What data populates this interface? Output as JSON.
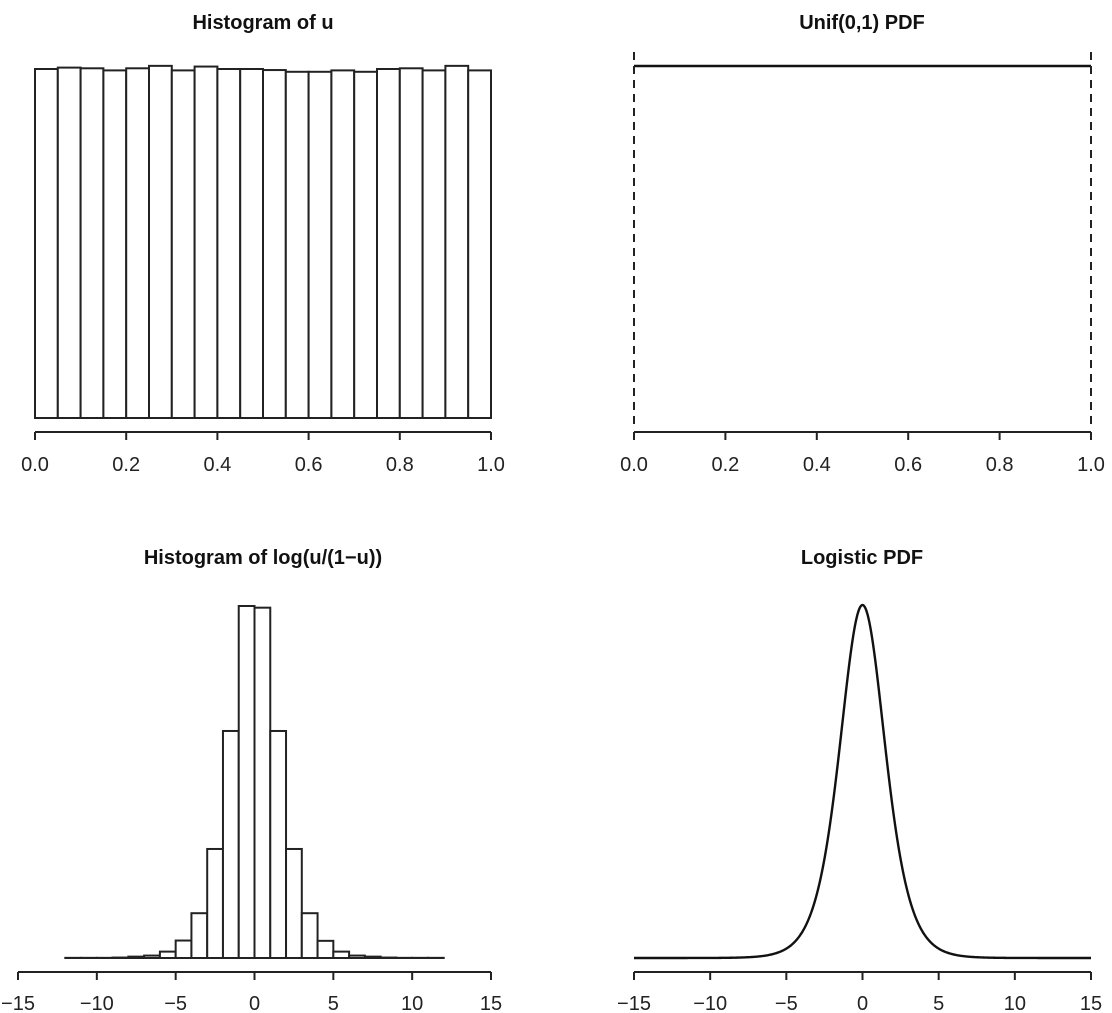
{
  "chart_data": [
    {
      "type": "bar",
      "title": "Histogram of u",
      "bin_edges": [
        0,
        0.05,
        0.1,
        0.15,
        0.2,
        0.25,
        0.3,
        0.35,
        0.4,
        0.45,
        0.5,
        0.55,
        0.6,
        0.65,
        0.7,
        0.75,
        0.8,
        0.85,
        0.9,
        0.95,
        1.0
      ],
      "values": [
        1.0,
        1.004,
        1.002,
        0.996,
        1.002,
        1.009,
        0.996,
        1.007,
        1.0,
        1.0,
        0.997,
        0.992,
        0.992,
        0.996,
        0.992,
        1.0,
        1.002,
        0.996,
        1.009,
        0.996
      ],
      "xlim": [
        0,
        1
      ],
      "xticks": [
        "0.0",
        "0.2",
        "0.4",
        "0.6",
        "0.8",
        "1.0"
      ],
      "xtick_values": [
        0,
        0.2,
        0.4,
        0.6,
        0.8,
        1.0
      ]
    },
    {
      "type": "line",
      "title": "Unif(0,1) PDF",
      "x": [
        0,
        1
      ],
      "y": [
        1,
        1
      ],
      "vertical_dashed_lines_at": [
        0,
        1
      ],
      "xlim": [
        0,
        1
      ],
      "xticks": [
        "0.0",
        "0.2",
        "0.4",
        "0.6",
        "0.8",
        "1.0"
      ],
      "xtick_values": [
        0,
        0.2,
        0.4,
        0.6,
        0.8,
        1.0
      ]
    },
    {
      "type": "bar",
      "title": "Histogram of log(u/(1−u))",
      "bin_edges": [
        -14,
        -13,
        -12,
        -11,
        -10,
        -9,
        -8,
        -7,
        -6,
        -5,
        -4,
        -3,
        -2,
        -1,
        0,
        1,
        2,
        3,
        4,
        5,
        6,
        7,
        8,
        9,
        10,
        11,
        12,
        13,
        14
      ],
      "values": [
        0.0,
        0.0,
        0.0001,
        0.0001,
        0.0001,
        0.0003,
        0.0009,
        0.0016,
        0.0042,
        0.0115,
        0.0295,
        0.0718,
        0.1495,
        0.2318,
        0.2307,
        0.1495,
        0.0718,
        0.0295,
        0.0113,
        0.0042,
        0.0016,
        0.0009,
        0.0003,
        0.0001,
        0.0001,
        0.0001,
        0.0,
        0.0
      ],
      "xlim": [
        -15,
        15
      ],
      "xticks": [
        "−15",
        "−10",
        "−5",
        "0",
        "5",
        "10",
        "15"
      ],
      "xtick_values": [
        -15,
        -10,
        -5,
        0,
        5,
        10,
        15
      ]
    },
    {
      "type": "line",
      "title": "Logistic PDF",
      "function": "logistic density exp(-x)/(1+exp(-x))^2",
      "peak": 0.25,
      "xlim": [
        -15,
        15
      ],
      "xticks": [
        "−15",
        "−10",
        "−5",
        "0",
        "5",
        "10",
        "15"
      ],
      "xtick_values": [
        -15,
        -10,
        -5,
        0,
        5,
        10,
        15
      ]
    }
  ]
}
